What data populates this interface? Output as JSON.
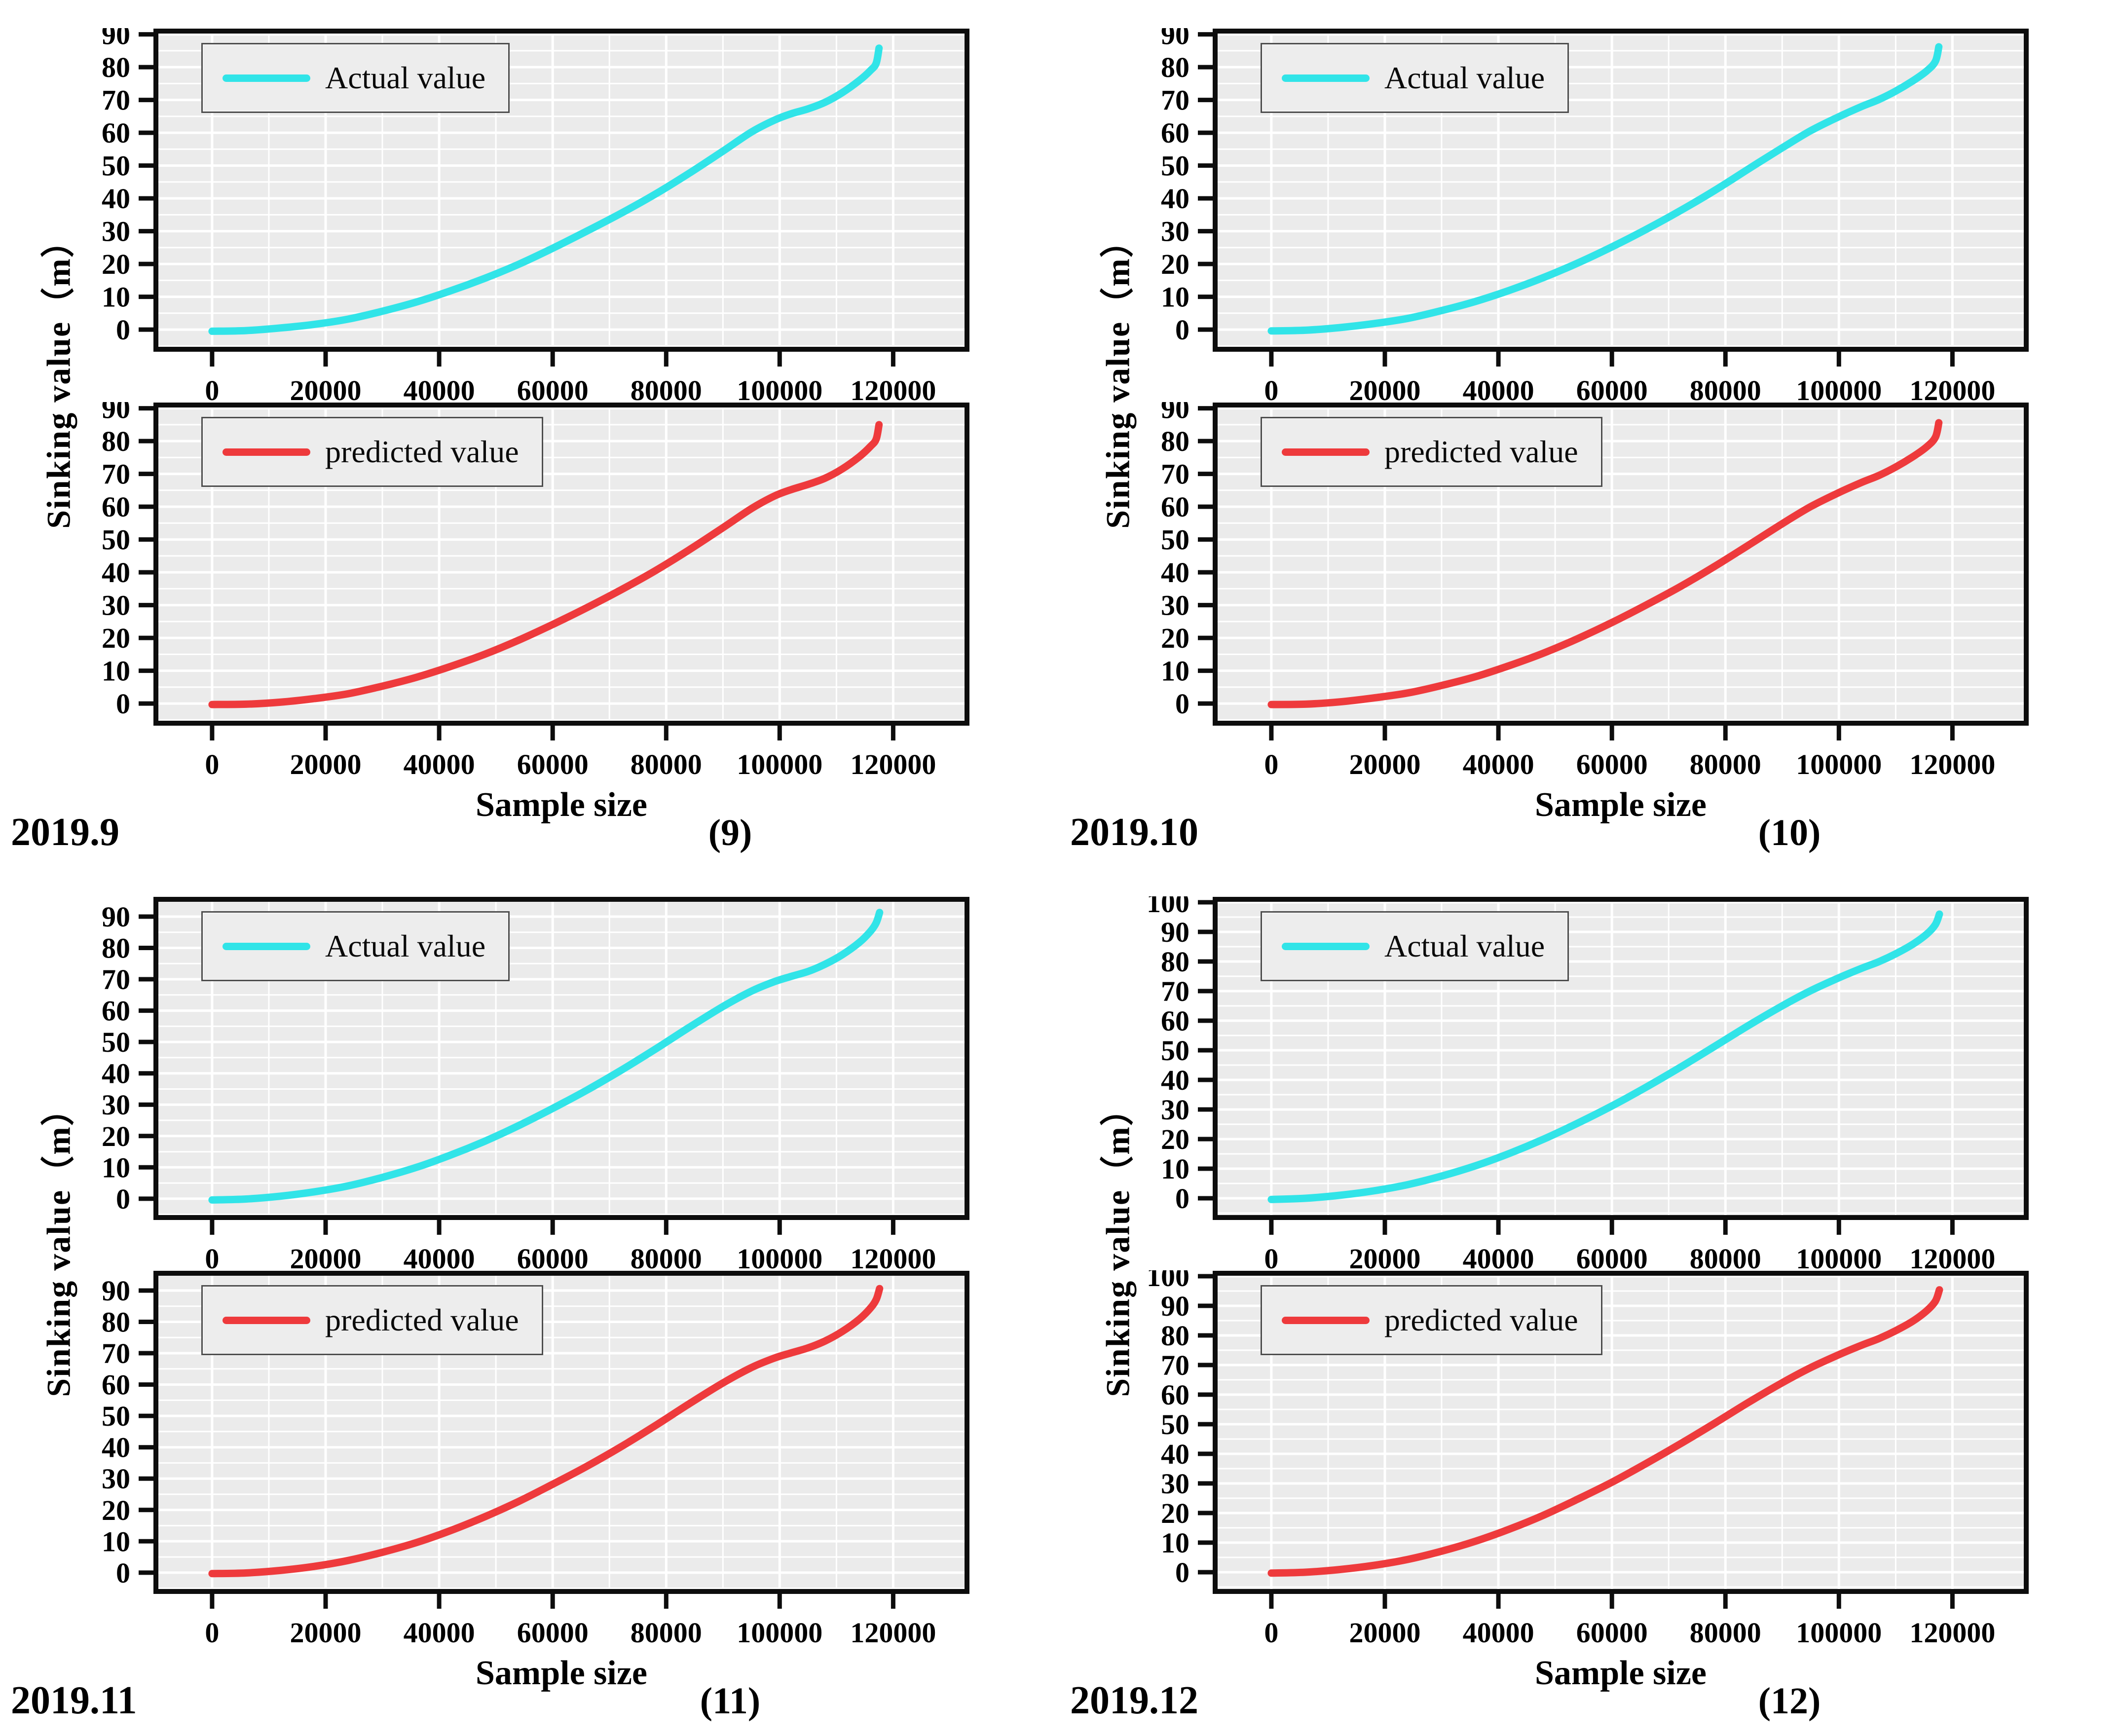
{
  "figure": {
    "colors": {
      "actual": "#31E4E8",
      "predicted": "#EE3A3C",
      "plot_bg": "#EBEBEB",
      "grid": "#FFFFFF",
      "frame": "#0D0D0D",
      "tick": "#0D0D0D",
      "legend_border": "#4D4D4D",
      "legend_bg": "#EDEDED"
    }
  },
  "chart_data": [
    {
      "id": "9",
      "type": "line",
      "date_label": "2019.9",
      "panel_label": "(9)",
      "xlabel": "Sample size",
      "ylabel": "Sinking value（m）",
      "xlim": [
        -9900,
        133000
      ],
      "xticks": [
        0,
        20000,
        40000,
        60000,
        80000,
        100000,
        120000
      ],
      "x_minor_step": 10000,
      "y_minor_step": 5,
      "grid": "on",
      "legend_position": "upper-left",
      "subplots": [
        {
          "series": "Actual value",
          "color_key": "actual",
          "ylim": [
            -6,
            91
          ],
          "yticks": [
            0,
            10,
            20,
            30,
            40,
            50,
            60,
            70,
            80,
            90
          ],
          "points": [
            [
              0,
              -0.5
            ],
            [
              6000,
              -0.3
            ],
            [
              12000,
              0.5
            ],
            [
              18000,
              1.6
            ],
            [
              24000,
              3.2
            ],
            [
              30000,
              5.6
            ],
            [
              36000,
              8.4
            ],
            [
              42000,
              11.8
            ],
            [
              48000,
              15.6
            ],
            [
              54000,
              19.9
            ],
            [
              60000,
              24.8
            ],
            [
              66000,
              30.0
            ],
            [
              72000,
              35.4
            ],
            [
              78000,
              41.2
            ],
            [
              84000,
              47.6
            ],
            [
              90000,
              54.4
            ],
            [
              95000,
              60.2
            ],
            [
              99000,
              63.8
            ],
            [
              102000,
              65.8
            ],
            [
              105000,
              67.3
            ],
            [
              108000,
              69.3
            ],
            [
              111000,
              72.2
            ],
            [
              114000,
              75.9
            ],
            [
              116000,
              79.0
            ],
            [
              117000,
              81.2
            ],
            [
              117500,
              85.8
            ]
          ]
        },
        {
          "series": "predicted value",
          "color_key": "predicted",
          "ylim": [
            -6,
            91
          ],
          "yticks": [
            0,
            10,
            20,
            30,
            40,
            50,
            60,
            70,
            80,
            90
          ],
          "points": [
            [
              0,
              -0.3
            ],
            [
              6000,
              -0.2
            ],
            [
              12000,
              0.4
            ],
            [
              18000,
              1.5
            ],
            [
              24000,
              3.0
            ],
            [
              30000,
              5.3
            ],
            [
              36000,
              8.0
            ],
            [
              42000,
              11.3
            ],
            [
              48000,
              15.0
            ],
            [
              54000,
              19.3
            ],
            [
              60000,
              24.1
            ],
            [
              66000,
              29.2
            ],
            [
              72000,
              34.6
            ],
            [
              78000,
              40.4
            ],
            [
              84000,
              46.8
            ],
            [
              90000,
              53.6
            ],
            [
              95000,
              59.4
            ],
            [
              99000,
              63.2
            ],
            [
              102000,
              65.2
            ],
            [
              105000,
              66.8
            ],
            [
              108000,
              68.7
            ],
            [
              111000,
              71.5
            ],
            [
              114000,
              75.2
            ],
            [
              116000,
              78.4
            ],
            [
              117000,
              80.6
            ],
            [
              117500,
              85.0
            ]
          ]
        }
      ]
    },
    {
      "id": "10",
      "type": "line",
      "date_label": "2019.10",
      "panel_label": "(10)",
      "xlabel": "Sample size",
      "ylabel": "Sinking value（m）",
      "xlim": [
        -9900,
        133000
      ],
      "xticks": [
        0,
        20000,
        40000,
        60000,
        80000,
        100000,
        120000
      ],
      "x_minor_step": 10000,
      "y_minor_step": 5,
      "grid": "on",
      "legend_position": "upper-left",
      "subplots": [
        {
          "series": "Actual value",
          "color_key": "actual",
          "ylim": [
            -6,
            91
          ],
          "yticks": [
            0,
            10,
            20,
            30,
            40,
            50,
            60,
            70,
            80,
            90
          ],
          "points": [
            [
              0,
              -0.4
            ],
            [
              6000,
              -0.2
            ],
            [
              12000,
              0.6
            ],
            [
              18000,
              1.8
            ],
            [
              24000,
              3.4
            ],
            [
              30000,
              5.8
            ],
            [
              36000,
              8.6
            ],
            [
              42000,
              12.0
            ],
            [
              48000,
              15.9
            ],
            [
              54000,
              20.3
            ],
            [
              60000,
              25.2
            ],
            [
              66000,
              30.5
            ],
            [
              72000,
              36.2
            ],
            [
              78000,
              42.3
            ],
            [
              84000,
              48.9
            ],
            [
              90000,
              55.4
            ],
            [
              95000,
              60.6
            ],
            [
              100000,
              64.9
            ],
            [
              104000,
              68.0
            ],
            [
              107000,
              70.1
            ],
            [
              110000,
              72.7
            ],
            [
              113000,
              75.8
            ],
            [
              115500,
              78.9
            ],
            [
              117000,
              81.8
            ],
            [
              117600,
              86.2
            ]
          ]
        },
        {
          "series": "predicted value",
          "color_key": "predicted",
          "ylim": [
            -6,
            91
          ],
          "yticks": [
            0,
            10,
            20,
            30,
            40,
            50,
            60,
            70,
            80,
            90
          ],
          "points": [
            [
              0,
              -0.3
            ],
            [
              6000,
              -0.2
            ],
            [
              12000,
              0.5
            ],
            [
              18000,
              1.7
            ],
            [
              24000,
              3.2
            ],
            [
              30000,
              5.5
            ],
            [
              36000,
              8.2
            ],
            [
              42000,
              11.6
            ],
            [
              48000,
              15.4
            ],
            [
              54000,
              19.8
            ],
            [
              60000,
              24.7
            ],
            [
              66000,
              30.0
            ],
            [
              72000,
              35.6
            ],
            [
              78000,
              41.7
            ],
            [
              84000,
              48.2
            ],
            [
              90000,
              54.8
            ],
            [
              95000,
              60.0
            ],
            [
              100000,
              64.3
            ],
            [
              104000,
              67.4
            ],
            [
              107000,
              69.5
            ],
            [
              110000,
              72.1
            ],
            [
              113000,
              75.2
            ],
            [
              115500,
              78.3
            ],
            [
              117000,
              81.2
            ],
            [
              117600,
              85.6
            ]
          ]
        }
      ]
    },
    {
      "id": "11",
      "type": "line",
      "date_label": "2019.11",
      "panel_label": "(11)",
      "xlabel": "Sample size",
      "ylabel": "Sinking value（m）",
      "xlim": [
        -9900,
        133000
      ],
      "xticks": [
        0,
        20000,
        40000,
        60000,
        80000,
        100000,
        120000
      ],
      "x_minor_step": 10000,
      "y_minor_step": 5,
      "grid": "on",
      "legend_position": "upper-left",
      "subplots": [
        {
          "series": "Actual value",
          "color_key": "actual",
          "ylim": [
            -6,
            95.5
          ],
          "yticks": [
            0,
            10,
            20,
            30,
            40,
            50,
            60,
            70,
            80,
            90
          ],
          "points": [
            [
              0,
              -0.4
            ],
            [
              6000,
              -0.1
            ],
            [
              12000,
              0.8
            ],
            [
              18000,
              2.2
            ],
            [
              24000,
              4.1
            ],
            [
              30000,
              6.8
            ],
            [
              36000,
              10.0
            ],
            [
              42000,
              13.9
            ],
            [
              48000,
              18.3
            ],
            [
              54000,
              23.3
            ],
            [
              60000,
              28.8
            ],
            [
              66000,
              34.6
            ],
            [
              72000,
              40.9
            ],
            [
              78000,
              47.6
            ],
            [
              84000,
              54.6
            ],
            [
              90000,
              61.3
            ],
            [
              95000,
              66.2
            ],
            [
              99000,
              69.2
            ],
            [
              102000,
              70.9
            ],
            [
              105000,
              72.5
            ],
            [
              108000,
              74.8
            ],
            [
              111000,
              77.8
            ],
            [
              114000,
              81.7
            ],
            [
              116000,
              85.3
            ],
            [
              117000,
              88.0
            ],
            [
              117600,
              91.3
            ]
          ]
        },
        {
          "series": "predicted value",
          "color_key": "predicted",
          "ylim": [
            -6,
            95.5
          ],
          "yticks": [
            0,
            10,
            20,
            30,
            40,
            50,
            60,
            70,
            80,
            90
          ],
          "points": [
            [
              0,
              -0.3
            ],
            [
              6000,
              -0.1
            ],
            [
              12000,
              0.7
            ],
            [
              18000,
              2.0
            ],
            [
              24000,
              3.9
            ],
            [
              30000,
              6.5
            ],
            [
              36000,
              9.6
            ],
            [
              42000,
              13.4
            ],
            [
              48000,
              17.8
            ],
            [
              54000,
              22.7
            ],
            [
              60000,
              28.2
            ],
            [
              66000,
              33.9
            ],
            [
              72000,
              40.1
            ],
            [
              78000,
              46.8
            ],
            [
              84000,
              53.8
            ],
            [
              90000,
              60.5
            ],
            [
              95000,
              65.4
            ],
            [
              99000,
              68.4
            ],
            [
              102000,
              70.1
            ],
            [
              105000,
              71.7
            ],
            [
              108000,
              73.9
            ],
            [
              111000,
              76.9
            ],
            [
              114000,
              80.8
            ],
            [
              116000,
              84.4
            ],
            [
              117000,
              87.1
            ],
            [
              117600,
              90.6
            ]
          ]
        }
      ]
    },
    {
      "id": "12",
      "type": "line",
      "date_label": "2019.12",
      "panel_label": "(12)",
      "xlabel": "Sample size",
      "ylabel": "Sinking value（m）",
      "xlim": [
        -9900,
        133000
      ],
      "xticks": [
        0,
        20000,
        40000,
        60000,
        80000,
        100000,
        120000
      ],
      "x_minor_step": 10000,
      "y_minor_step": 5,
      "grid": "on",
      "legend_position": "upper-left",
      "subplots": [
        {
          "series": "Actual value",
          "color_key": "actual",
          "ylim": [
            -6.5,
            101
          ],
          "yticks": [
            0,
            10,
            20,
            30,
            40,
            50,
            60,
            70,
            80,
            90,
            100
          ],
          "points": [
            [
              0,
              -0.4
            ],
            [
              6000,
              0.0
            ],
            [
              12000,
              1.0
            ],
            [
              18000,
              2.5
            ],
            [
              24000,
              4.6
            ],
            [
              30000,
              7.5
            ],
            [
              36000,
              11.0
            ],
            [
              42000,
              15.2
            ],
            [
              48000,
              20.0
            ],
            [
              54000,
              25.4
            ],
            [
              60000,
              31.2
            ],
            [
              66000,
              37.5
            ],
            [
              72000,
              44.2
            ],
            [
              78000,
              51.2
            ],
            [
              84000,
              58.3
            ],
            [
              90000,
              65.0
            ],
            [
              95000,
              70.1
            ],
            [
              100000,
              74.5
            ],
            [
              104000,
              77.7
            ],
            [
              107000,
              79.9
            ],
            [
              110000,
              82.6
            ],
            [
              113000,
              85.8
            ],
            [
              115500,
              89.3
            ],
            [
              117000,
              92.5
            ],
            [
              117700,
              96.0
            ]
          ]
        },
        {
          "series": "predicted value",
          "color_key": "predicted",
          "ylim": [
            -6.5,
            101
          ],
          "yticks": [
            0,
            10,
            20,
            30,
            40,
            50,
            60,
            70,
            80,
            90,
            100
          ],
          "points": [
            [
              0,
              -0.3
            ],
            [
              6000,
              0.0
            ],
            [
              12000,
              0.9
            ],
            [
              18000,
              2.3
            ],
            [
              24000,
              4.3
            ],
            [
              30000,
              7.1
            ],
            [
              36000,
              10.5
            ],
            [
              42000,
              14.6
            ],
            [
              48000,
              19.3
            ],
            [
              54000,
              24.7
            ],
            [
              60000,
              30.4
            ],
            [
              66000,
              36.7
            ],
            [
              72000,
              43.3
            ],
            [
              78000,
              50.2
            ],
            [
              84000,
              57.3
            ],
            [
              90000,
              64.0
            ],
            [
              95000,
              69.1
            ],
            [
              100000,
              73.5
            ],
            [
              104000,
              76.7
            ],
            [
              107000,
              78.9
            ],
            [
              110000,
              81.6
            ],
            [
              113000,
              84.8
            ],
            [
              115500,
              88.4
            ],
            [
              117000,
              91.6
            ],
            [
              117700,
              95.4
            ]
          ]
        }
      ]
    }
  ]
}
